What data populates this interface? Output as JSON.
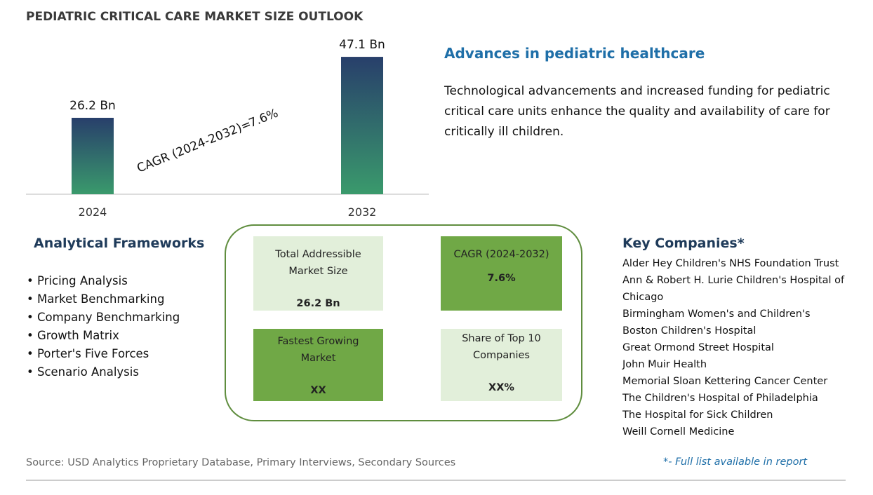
{
  "title": "PEDIATRIC CRITICAL CARE MARKET SIZE OUTLOOK",
  "chart_data": {
    "type": "bar",
    "categories": [
      "2024",
      "2032"
    ],
    "values": [
      26.2,
      47.1
    ],
    "value_labels": [
      "26.2 Bn",
      "47.1 Bn"
    ],
    "annotation": {
      "label": "CAGR (2024-2032)=",
      "value": "7.6%"
    }
  },
  "highlight": {
    "title": "Advances in pediatric healthcare",
    "text": "Technological advancements and increased funding for pediatric critical care units enhance the quality and availability of care for critically ill children."
  },
  "frameworks": {
    "title": "Analytical Frameworks",
    "items": [
      "Pricing Analysis",
      "Market Benchmarking",
      "Company Benchmarking",
      "Growth Matrix",
      "Porter's Five Forces",
      "Scenario Analysis"
    ]
  },
  "metrics": [
    {
      "label": "Total Addressible Market Size",
      "value": "26.2 Bn"
    },
    {
      "label": "CAGR (2024-2032)",
      "value": "7.6%"
    },
    {
      "label": "Fastest Growing Market",
      "value": "XX"
    },
    {
      "label": "Share of Top 10 Companies",
      "value": "XX%"
    }
  ],
  "companies": {
    "title": "Key Companies*",
    "items": [
      "Alder Hey Children's NHS Foundation Trust",
      "Ann & Robert H. Lurie Children's Hospital of Chicago",
      "Birmingham Women's and Children's",
      "Boston Children's Hospital",
      "Great Ormond Street Hospital",
      "John Muir Health",
      "Memorial Sloan Kettering Cancer Center",
      "The Children's Hospital of Philadelphia",
      "The Hospital for Sick Children",
      "Weill Cornell Medicine"
    ]
  },
  "source": "Source: USD Analytics Proprietary Database, Primary Interviews, Secondary Sources",
  "note": "*- Full list available in report"
}
